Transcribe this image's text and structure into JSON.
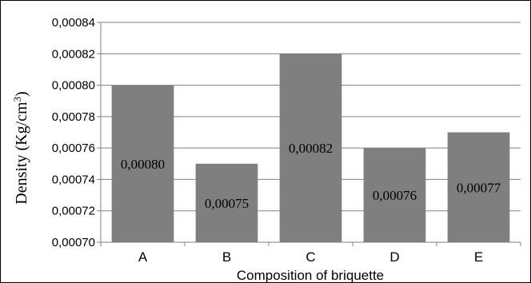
{
  "chart_data": {
    "type": "bar",
    "categories": [
      "A",
      "B",
      "C",
      "D",
      "E"
    ],
    "values": [
      0.0008,
      0.00075,
      0.00082,
      0.00076,
      0.00077
    ],
    "data_labels": [
      "0,00080",
      "0,00075",
      "0,00082",
      "0,00076",
      "0,00077"
    ],
    "title": "",
    "xlabel": "Composition of briquette",
    "ylabel": "Density (Kg/cm",
    "ylabel_superscript": "3",
    "ylabel_suffix": ")",
    "ylim": [
      0.0007,
      0.00084
    ],
    "yticks": [
      0.0007,
      0.00072,
      0.00074,
      0.00076,
      0.00078,
      0.0008,
      0.00082,
      0.00084
    ],
    "ytick_labels": [
      "0,00070",
      "0,00072",
      "0,00074",
      "0,00076",
      "0,00078",
      "0,00080",
      "0,00082",
      "0,00084"
    ],
    "grid": true,
    "legend": "none",
    "bar_color": "#7f7f7f",
    "grid_color": "#808080",
    "axis_color": "#808080"
  }
}
